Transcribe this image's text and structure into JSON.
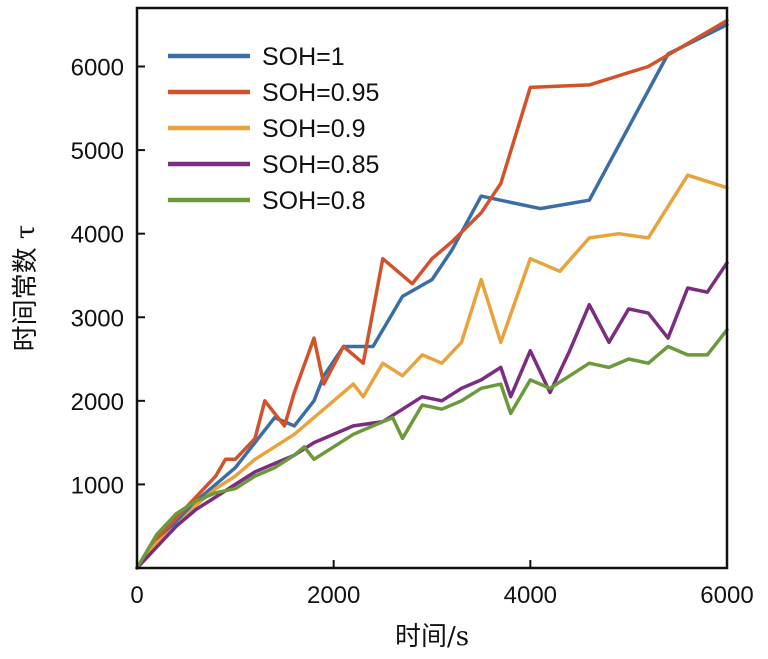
{
  "chart_data": {
    "type": "line",
    "xlabel": "时间/s",
    "ylabel": "时间常数 τ",
    "xlim": [
      0,
      6000
    ],
    "ylim": [
      0,
      6700
    ],
    "xticks": [
      0,
      2000,
      4000,
      6000
    ],
    "yticks": [
      1000,
      2000,
      3000,
      4000,
      5000,
      6000
    ],
    "xtick_labels": [
      "0",
      "2000",
      "4000",
      "6000"
    ],
    "ytick_labels": [
      "1000",
      "2000",
      "3000",
      "4000",
      "5000",
      "6000"
    ],
    "grid": false,
    "legend_position": "top-left",
    "series": [
      {
        "name": "SOH=1",
        "color": "#3a6ea5",
        "x": [
          0,
          200,
          400,
          600,
          800,
          1000,
          1200,
          1400,
          1600,
          1800,
          1900,
          2100,
          2400,
          2700,
          3000,
          3200,
          3500,
          4100,
          4600,
          5400,
          6000
        ],
        "y": [
          0,
          300,
          550,
          800,
          1000,
          1200,
          1500,
          1800,
          1700,
          2000,
          2300,
          2650,
          2650,
          3250,
          3450,
          3800,
          4450,
          4300,
          4400,
          6150,
          6500
        ]
      },
      {
        "name": "SOH=0.95",
        "color": "#d2522b",
        "x": [
          0,
          200,
          400,
          600,
          800,
          900,
          1000,
          1200,
          1300,
          1500,
          1600,
          1800,
          1900,
          2100,
          2300,
          2500,
          2800,
          3000,
          3200,
          3500,
          3700,
          4000,
          4600,
          5200,
          6000
        ],
        "y": [
          0,
          350,
          600,
          850,
          1100,
          1300,
          1300,
          1550,
          2000,
          1700,
          2100,
          2750,
          2200,
          2650,
          2450,
          3700,
          3400,
          3700,
          3900,
          4250,
          4600,
          5750,
          5780,
          6000,
          6550
        ]
      },
      {
        "name": "SOH=0.9",
        "color": "#e8a33d",
        "x": [
          0,
          200,
          400,
          600,
          800,
          1000,
          1200,
          1400,
          1600,
          1800,
          2000,
          2200,
          2300,
          2500,
          2700,
          2900,
          3100,
          3300,
          3500,
          3700,
          4000,
          4300,
          4600,
          4900,
          5200,
          5600,
          6000
        ],
        "y": [
          0,
          300,
          500,
          750,
          950,
          1100,
          1300,
          1450,
          1600,
          1800,
          2000,
          2200,
          2050,
          2450,
          2300,
          2550,
          2450,
          2700,
          3450,
          2700,
          3700,
          3550,
          3950,
          4000,
          3950,
          4700,
          4550
        ]
      },
      {
        "name": "SOH=0.85",
        "color": "#7b2d7f",
        "x": [
          0,
          200,
          400,
          600,
          800,
          1000,
          1200,
          1400,
          1600,
          1800,
          2000,
          2200,
          2500,
          2700,
          2900,
          3100,
          3300,
          3500,
          3700,
          3800,
          4000,
          4200,
          4400,
          4600,
          4800,
          5000,
          5200,
          5400,
          5600,
          5800,
          6000
        ],
        "y": [
          0,
          250,
          500,
          700,
          850,
          1000,
          1150,
          1250,
          1350,
          1500,
          1600,
          1700,
          1750,
          1900,
          2050,
          2000,
          2150,
          2250,
          2400,
          2050,
          2600,
          2100,
          2600,
          3150,
          2700,
          3100,
          3050,
          2750,
          3350,
          3300,
          3650
        ]
      },
      {
        "name": "SOH=0.8",
        "color": "#6a9a3a",
        "x": [
          0,
          200,
          400,
          600,
          800,
          1000,
          1200,
          1400,
          1600,
          1700,
          1800,
          2000,
          2200,
          2400,
          2600,
          2700,
          2900,
          3100,
          3300,
          3500,
          3700,
          3800,
          4000,
          4200,
          4400,
          4600,
          4800,
          5000,
          5200,
          5400,
          5600,
          5800,
          6000
        ],
        "y": [
          0,
          400,
          650,
          800,
          900,
          950,
          1100,
          1200,
          1350,
          1450,
          1300,
          1450,
          1600,
          1700,
          1800,
          1550,
          1950,
          1900,
          2000,
          2150,
          2200,
          1850,
          2250,
          2150,
          2300,
          2450,
          2400,
          2500,
          2450,
          2650,
          2550,
          2550,
          2850
        ]
      }
    ]
  }
}
